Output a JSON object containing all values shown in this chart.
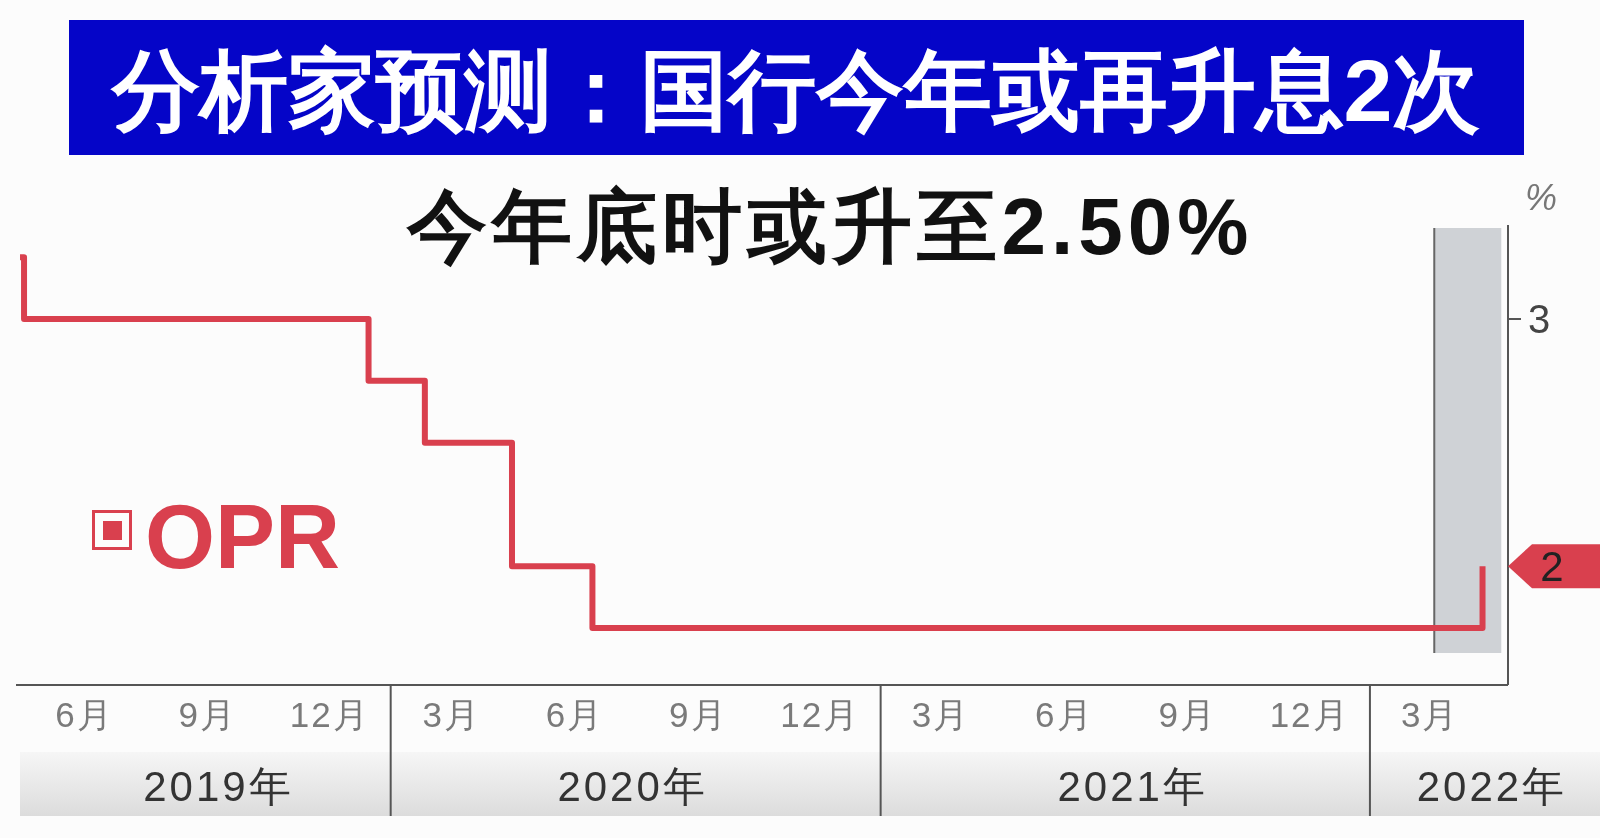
{
  "chart_data": {
    "type": "step",
    "title": "分析家预测：国行今年或再升息2次",
    "subtitle": "今年底时或升至2.50%",
    "ylabel": "%",
    "x": [
      "2019-04-28",
      "2019-05-01",
      "2020-01-13",
      "2020-02-24",
      "2020-04-29",
      "2020-06-28",
      "2022-04-23"
    ],
    "series": [
      {
        "name": "OPR",
        "color": "#d9404e",
        "values": [
          3.25,
          3.0,
          2.75,
          2.5,
          2.0,
          1.75,
          2.0
        ]
      }
    ],
    "xlim": [
      "2019-04-25",
      "2022-05-12"
    ],
    "xticks": [
      {
        "value": "2019-06-15",
        "label": "6月"
      },
      {
        "value": "2019-09-15",
        "label": "9月"
      },
      {
        "value": "2019-12-15",
        "label": "12月"
      },
      {
        "value": "2020-03-15",
        "label": "3月"
      },
      {
        "value": "2020-06-15",
        "label": "6月"
      },
      {
        "value": "2020-09-15",
        "label": "9月"
      },
      {
        "value": "2020-12-15",
        "label": "12月"
      },
      {
        "value": "2021-03-15",
        "label": "3月"
      },
      {
        "value": "2021-06-15",
        "label": "6月"
      },
      {
        "value": "2021-09-15",
        "label": "9月"
      },
      {
        "value": "2021-12-15",
        "label": "12月"
      },
      {
        "value": "2022-03-15",
        "label": "3月"
      }
    ],
    "x2lim": [
      "2019-04-25",
      "2022-05-12"
    ],
    "x2ticks": [
      {
        "value": "2019-09-23",
        "label": "2019年"
      },
      {
        "value": "2020-07-28",
        "label": "2020年"
      },
      {
        "value": "2021-08-05",
        "label": "2021年"
      },
      {
        "value": "2022-04-30",
        "label": "2022年"
      }
    ],
    "ylim": [
      1.52,
      3.38
    ],
    "yticks": [
      2,
      3
    ],
    "bands": [
      {
        "axis": "x",
        "from": "2022-03-18",
        "to": "2022-05-07",
        "color": "#cfd2d6"
      }
    ],
    "legend": "bottom left",
    "line_style": "solid"
  }
}
